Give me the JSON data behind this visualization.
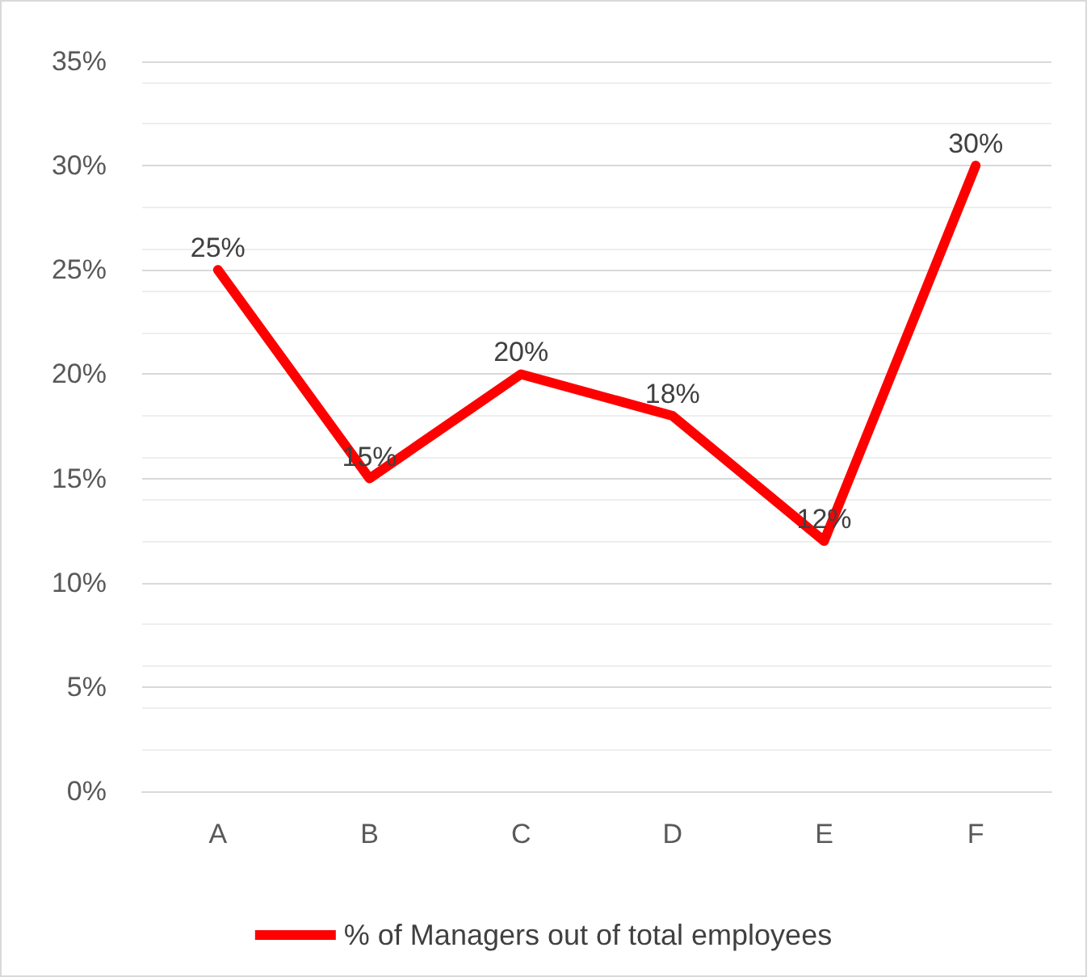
{
  "chart_data": {
    "type": "line",
    "categories": [
      "A",
      "B",
      "C",
      "D",
      "E",
      "F"
    ],
    "series": [
      {
        "name": "% of Managers out of total employees",
        "color": "#ff0000",
        "values": [
          25,
          15,
          20,
          18,
          12,
          30
        ],
        "value_labels": [
          "25%",
          "15%",
          "20%",
          "18%",
          "12%",
          "30%"
        ]
      }
    ],
    "ylim": [
      0,
      35
    ],
    "yticks": [
      {
        "value": 0,
        "label": "0%"
      },
      {
        "value": 5,
        "label": "5%"
      },
      {
        "value": 10,
        "label": "10%"
      },
      {
        "value": 15,
        "label": "15%"
      },
      {
        "value": 20,
        "label": "20%"
      },
      {
        "value": 25,
        "label": "25%"
      },
      {
        "value": 30,
        "label": "30%"
      },
      {
        "value": 35,
        "label": "35%"
      }
    ],
    "grid": "y",
    "legend": "bottom",
    "marker": "none",
    "line_style": "solid"
  }
}
